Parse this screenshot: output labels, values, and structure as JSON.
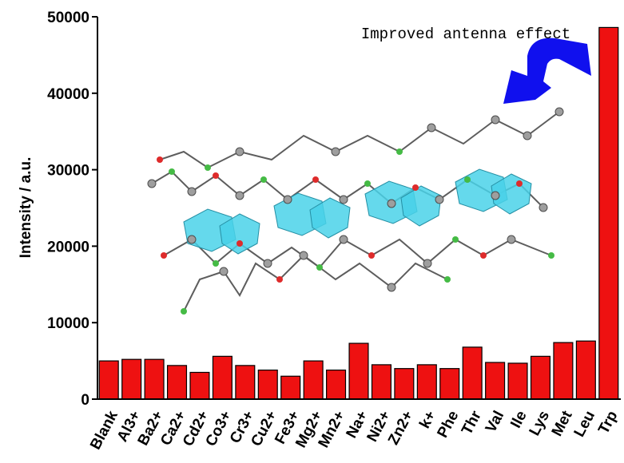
{
  "chart_data": {
    "type": "bar",
    "y_label": "Intensity / a.u.",
    "annotation": "Improved antenna effect",
    "categories": [
      "Blank",
      "Al3+",
      "Ba2+",
      "Ca2+",
      "Cd2+",
      "Co3+",
      "Cr3+",
      "Cu2+",
      "Fe3+",
      "Mg2+",
      "Mn2+",
      "Na+",
      "Ni2+",
      "Zn2+",
      "k+",
      "Phe",
      "Thr",
      "Val",
      "Ile",
      "Lys",
      "Met",
      "Leu",
      "Trp"
    ],
    "values": [
      5000,
      5200,
      5200,
      4400,
      3500,
      5600,
      4400,
      3800,
      3000,
      5000,
      3800,
      7300,
      4500,
      4000,
      4500,
      4000,
      6800,
      4800,
      4700,
      5600,
      7400,
      7600,
      48600
    ],
    "color": "#ee1111",
    "ylim": [
      0,
      50000
    ],
    "yticks": [
      0,
      10000,
      20000,
      30000,
      40000,
      50000
    ]
  }
}
